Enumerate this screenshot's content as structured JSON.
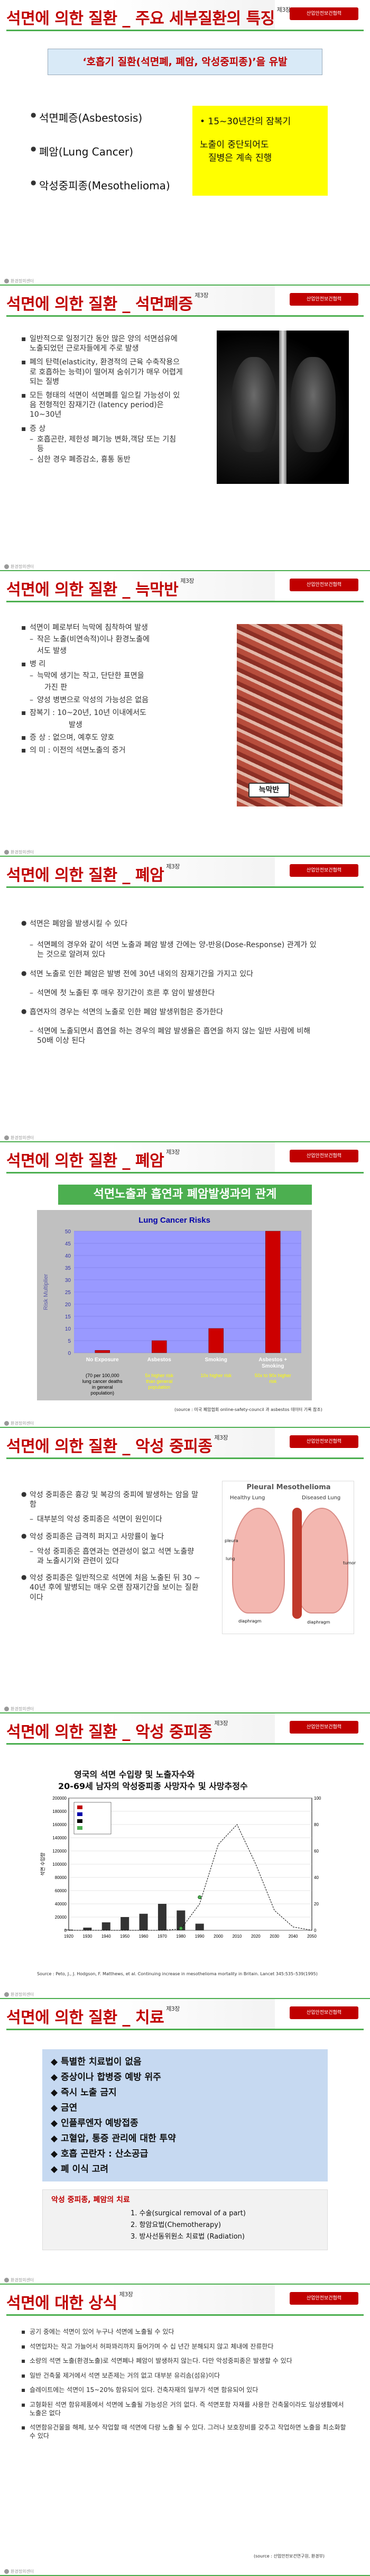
{
  "footer_logo": "환경정의센터",
  "slides": [
    {
      "title": "석면에 의한 질환 _ 주요 세부질환의 특징",
      "title_sub": "제3장",
      "badge": "산업안전보건협력",
      "banner": "‘호흡기 질환(석면폐, 폐암, 악성중피종)’을 유발",
      "diseases": [
        "석면폐증(Asbestosis)",
        "폐암(Lung Cancer)",
        "악성중피종(Mesothelioma)"
      ],
      "yellow": [
        "15~30년간의 잠복기",
        "노출이 중단되어도",
        "질병은 계속 진행"
      ]
    },
    {
      "title": "석면에 의한 질환 _ 석면폐증",
      "title_sub": "제3장",
      "badge": "산업안전보건협력",
      "bullets": [
        "일반적으로 일정기간 동안 많은 양의 석면섬유에 노출되었던 근로자들에게 주로 발생",
        "폐의 탄력(elasticity, 환경적의 근육 수축작용으로 호흡하는 능력)이 떨어져 숨쉬기가 매우 어렵게 되는 질병",
        "모든 형태의 석면이 석면폐를 일으킬 가능성이 있음 전형적인 잠재기간 (latency period)은 10~30년",
        "증 상",
        "호흡곤란, 제한성 폐기능 변화,객담 또는 기침 등",
        "심한 경우 폐증감소, 흉통 동반"
      ]
    },
    {
      "title": "석면에 의한 질환 _ 늑막반",
      "title_sub": "제3장",
      "badge": "산업안전보건협력",
      "bullets": [
        "석면이 폐로부터 늑막에 침착하여 발생",
        "작은 노출(비연속적)이나 환경노출에",
        "서도 발생",
        "병 리",
        "늑막에 생기는 작고, 단단한 표면을",
        "가진 판",
        "양성 병변으로 악성의 가능성은 없음",
        "잠복기 : 10~20년, 10년 이내에서도",
        "발생",
        "증 상 : 없으며, 예후도 양호",
        "의 미 : 이전의 석면노출의 증거"
      ],
      "image_label": "늑막반"
    },
    {
      "title": "석면에 의한 질환 _ 폐암",
      "title_sub": "제3장",
      "badge": "산업안전보건협력",
      "bullets": [
        "석면은 폐암을 발생시킬 수 있다",
        "석면폐의 경우와 같이 석면 노출과 폐암 발생 간에는 양-반응(Dose-Response) 관계가 있는 것으로 알려져 있다",
        "석면 노출로 인한 폐암은 발병 전에 30년 내외의 잠재기간을 가지고 있다",
        "석면에 첫 노출된 후 매우 장기간이 흐른 후 암이 발생한다",
        "흡연자의 경우는 석면의 노출로 인한 폐암 발생위험은 증가한다",
        "석면에 노출되면서 흡연을 하는 경우의 폐암 발생율은 흡연을 하지 않는 일반 사람에 비해 50배 이상 된다"
      ]
    },
    {
      "title": "석면에 의한 질환 _ 폐암",
      "title_sub": "제3장",
      "badge": "산업안전보건협력",
      "banner": "석면노출과 흡연과 폐암발생과의 관계",
      "source": "(source : 미국 폐암협회 online-safety-council 과 asbestos 데이터 기록 참조)"
    },
    {
      "title": "석면에 의한 질환 _ 악성 중피종",
      "title_sub": "제3장",
      "badge": "산업안전보건협력",
      "bullets": [
        "악성 중피종은 흉강 및 복강의 중피에 발생하는 암을 말함",
        "대부분의 악성 중피종은 석면이 원인이다",
        "악성 중피종은 급격히 퍼지고 사망률이 높다",
        "악성 중피종은 흡연과는 연관성이 없고 석면 노출량과 노출시기와 관련이 있다",
        "악성 중피종은 일반적으로 석면에 처음 노출된 뒤 30 ~ 40년 후에 발병되는 매우 오랜 잠재기간을 보이는 질환이다"
      ],
      "image_title": "Pleural Mesothelioma",
      "image_left": "Healthy Lung",
      "image_right": "Diseased Lung",
      "image_labels": [
        "pleura",
        "lung",
        "diaphragm",
        "tumor",
        "diaphragm"
      ]
    },
    {
      "title": "석면에 의한 질환 _ 악성 중피종",
      "title_sub": "제3장",
      "badge": "산업안전보건협력",
      "chart_heading_1": "영국의 석면 수입량 및 노출자수와",
      "chart_heading_2": "20-69세 남자의 악성중피종 사망자수 및 사망추정수",
      "source": "Source : Peto, J., J. Hodgson, F. Matthews, et al. Continuing increase in mesothelioma mortality in Britain. Lancet 345:535–539(1995)"
    },
    {
      "title": "석면에 의한 질환 _ 치료",
      "title_sub": "제3장",
      "badge": "산업안전보건협력",
      "items": [
        "특별한 치료법이 없음",
        "증상이나 합병증 예방 위주",
        "즉시 노출 금지",
        "금연",
        "인플루엔자 예방접종",
        "고혈압, 통증 관리에 대한 투약",
        "호흡 곤란자 : 산소공급",
        "폐 이식 고려"
      ],
      "box_title": "악성 중피종, 폐암의 치료",
      "box_items": [
        "1. 수술(surgical removal of a part)",
        "2. 항암요법(Chemotherapy)",
        "3. 방사선동위원소 치료법 (Radiation)"
      ]
    },
    {
      "title": "석면에 대한 상식",
      "title_sub": "제3장",
      "badge": "산업안전보건협력",
      "bullets": [
        "공기 중에는 석면이 있어 누구나 석면에 노출될 수 있다",
        "석면입자는 작고 가늘어서 허파꽈리까지 들어가며 수 십 년간 분해되지 않고 체내에 잔류한다",
        "소량의 석면 노출(환경노출)로 석면폐나 폐암이 발생하지 않는다. 다만 악성중피종은 발생할 수 있다",
        "일반 건축물 제거에서 석면 보존제는 거의 없고 대부분 유리솜(섬유)이다",
        "슬레이트에는 석면이 15~20% 함유되어 있다. 건축자재의 일부가 석면 함유되어 있다",
        "고형화된 석면 함유제품에서 석면에 노출될 가능성은 거의 없다. 즉 석면포함 자재를 사용한 건축물이라도 일상생활에서 노출은 없다",
        "석면함유건물을 해체, 보수 작업할 때 석면에 다량 노출 될 수 있다. 그러나 보호장비를 갖추고 작업하면 노출을 최소화할 수 있다"
      ],
      "source": "(source : 산업안전보건연구원, 환경부)"
    }
  ],
  "chart_data": [
    {
      "type": "bar",
      "title": "Lung Cancer Risks",
      "ylabel": "Risk Multiplier",
      "ylim": [
        0,
        50
      ],
      "yticks": [
        0,
        5,
        10,
        15,
        20,
        25,
        30,
        35,
        40,
        45,
        50
      ],
      "categories": [
        "No Exposure",
        "Asbestos",
        "Smoking",
        "Asbestos + Smoking"
      ],
      "values": [
        1,
        5,
        10,
        50
      ],
      "colors": {
        "bar": "#cc0000",
        "panel": "#9999ff",
        "frame": "#c0c0c0"
      },
      "sublabels": [
        "(70 per 100,000 lung cancer deaths in general population)",
        "5x higher risk than general population",
        "10x higher risk",
        "50x to 90x higher risk"
      ]
    },
    {
      "type": "line",
      "xlabel": "",
      "ylabel_left": "석면 수입량",
      "x": [
        1920,
        1930,
        1940,
        1950,
        1960,
        1970,
        1980,
        1990,
        2000,
        2010,
        2020,
        2030,
        2040,
        2050
      ],
      "ylim_left": [
        0,
        200000
      ],
      "yticks_left": [
        0,
        20000,
        40000,
        60000,
        80000,
        100000,
        120000,
        140000,
        160000,
        180000,
        200000
      ],
      "ylim_right": [
        0,
        100
      ],
      "series": [
        {
          "kind": "bar",
          "values": [
            1000,
            4000,
            12000,
            20000,
            25000,
            40000,
            30000,
            10000,
            0,
            0,
            0,
            0,
            0,
            0
          ]
        },
        {
          "kind": "line-observed",
          "values": [
            0,
            0,
            0,
            0,
            0,
            0,
            3000,
            50000,
            0,
            0,
            0,
            0,
            0,
            0
          ]
        },
        {
          "kind": "line-projected",
          "values": [
            0,
            0,
            0,
            0,
            0,
            0,
            2000,
            40000,
            130000,
            160000,
            100000,
            30000,
            5000,
            0
          ]
        }
      ]
    }
  ]
}
